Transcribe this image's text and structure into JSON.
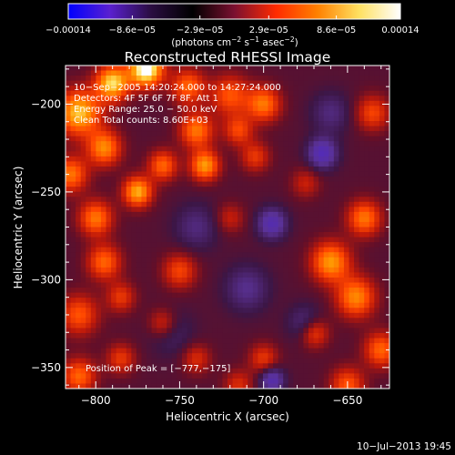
{
  "chart_data": {
    "type": "heatmap",
    "title": "Reconstructed RHESSI Image",
    "xlabel": "Heliocentric X (arcsec)",
    "ylabel": "Heliocentric Y (arcsec)",
    "xlim": [
      -818,
      -625
    ],
    "ylim": [
      -362,
      -178
    ],
    "x_ticks": [
      -800,
      -750,
      -700,
      -650
    ],
    "y_ticks": [
      -200,
      -250,
      -300,
      -350
    ],
    "x_tick_labels": [
      "−800",
      "−750",
      "−700",
      "−650"
    ],
    "y_tick_labels": [
      "−200",
      "−250",
      "−300",
      "−350"
    ],
    "colorbar": {
      "range": [
        -0.00014,
        0.00014
      ],
      "ticks": [
        -0.00014,
        -8.6e-05,
        -2.9e-05,
        2.9e-05,
        8.6e-05,
        0.00014
      ],
      "tick_labels": [
        "−0.00014",
        "−8.6e−05",
        "−2.9e−05",
        "2.9e−05",
        "8.6e−05",
        "0.00014"
      ],
      "unit_line1": "(photons cm",
      "unit_exp1": "−2",
      "unit_line2": " s",
      "unit_exp2": "−1",
      "unit_line3": " asec",
      "unit_exp3": "−2",
      "unit_close": ")",
      "colors": [
        "#0000ff",
        "#5a20d0",
        "#2a0d40",
        "#000000",
        "#7a1030",
        "#ff2a00",
        "#ff8000",
        "#ffe060",
        "#ffffff"
      ]
    },
    "annotations": [
      "10−Sep−2005 14:20:24.000 to 14:27:24.000",
      "Detectors: 4F 5F 6F 7F 8F, Att 1",
      "Energy Range: 25.0 − 50.0 keV",
      "Clean     Total counts: 8.60E+03"
    ],
    "peak_label": "Position of Peak = [−777,−175]",
    "sources": [
      {
        "x": -770,
        "y": -180,
        "v": 1.0,
        "s": 7
      },
      {
        "x": -790,
        "y": -188,
        "v": 0.8,
        "s": 7
      },
      {
        "x": -810,
        "y": -205,
        "v": 0.75,
        "s": 9
      },
      {
        "x": -795,
        "y": -225,
        "v": 0.6,
        "s": 7
      },
      {
        "x": -815,
        "y": -240,
        "v": 0.55,
        "s": 7
      },
      {
        "x": -775,
        "y": -250,
        "v": 0.7,
        "s": 6
      },
      {
        "x": -760,
        "y": -235,
        "v": 0.5,
        "s": 6
      },
      {
        "x": -740,
        "y": -215,
        "v": 0.55,
        "s": 7
      },
      {
        "x": -735,
        "y": -235,
        "v": 0.65,
        "s": 6
      },
      {
        "x": -745,
        "y": -190,
        "v": 0.5,
        "s": 7
      },
      {
        "x": -720,
        "y": -195,
        "v": 0.45,
        "s": 8
      },
      {
        "x": -700,
        "y": -200,
        "v": 0.55,
        "s": 7
      },
      {
        "x": -715,
        "y": -215,
        "v": 0.4,
        "s": 6
      },
      {
        "x": -705,
        "y": -230,
        "v": 0.35,
        "s": 6
      },
      {
        "x": -800,
        "y": -265,
        "v": 0.55,
        "s": 7
      },
      {
        "x": -795,
        "y": -290,
        "v": 0.5,
        "s": 7
      },
      {
        "x": -810,
        "y": -320,
        "v": 0.45,
        "s": 8
      },
      {
        "x": -750,
        "y": -295,
        "v": 0.4,
        "s": 7
      },
      {
        "x": -785,
        "y": -310,
        "v": 0.35,
        "s": 6
      },
      {
        "x": -760,
        "y": -325,
        "v": 0.35,
        "s": 6
      },
      {
        "x": -810,
        "y": -355,
        "v": 0.5,
        "s": 7
      },
      {
        "x": -785,
        "y": -345,
        "v": 0.35,
        "s": 6
      },
      {
        "x": -740,
        "y": -345,
        "v": 0.3,
        "s": 6
      },
      {
        "x": -660,
        "y": -290,
        "v": 0.65,
        "s": 8
      },
      {
        "x": -640,
        "y": -265,
        "v": 0.55,
        "s": 7
      },
      {
        "x": -645,
        "y": -310,
        "v": 0.6,
        "s": 8
      },
      {
        "x": -630,
        "y": -340,
        "v": 0.5,
        "s": 7
      },
      {
        "x": -670,
        "y": -330,
        "v": 0.45,
        "s": 6
      },
      {
        "x": -650,
        "y": -360,
        "v": 0.45,
        "s": 7
      },
      {
        "x": -700,
        "y": -345,
        "v": 0.35,
        "s": 6
      },
      {
        "x": -715,
        "y": -360,
        "v": 0.3,
        "s": 6
      },
      {
        "x": -635,
        "y": -205,
        "v": 0.4,
        "s": 7
      },
      {
        "x": -675,
        "y": -245,
        "v": 0.25,
        "s": 6
      },
      {
        "x": -720,
        "y": -265,
        "v": 0.25,
        "s": 6
      },
      {
        "x": -665,
        "y": -228,
        "v": -0.55,
        "s": 6
      },
      {
        "x": -695,
        "y": -268,
        "v": -0.5,
        "s": 6
      },
      {
        "x": -695,
        "y": -357,
        "v": -0.5,
        "s": 5
      },
      {
        "x": -675,
        "y": -325,
        "v": -0.3,
        "s": 7
      },
      {
        "x": -740,
        "y": -270,
        "v": -0.25,
        "s": 9
      },
      {
        "x": -660,
        "y": -205,
        "v": -0.25,
        "s": 8
      },
      {
        "x": -755,
        "y": -330,
        "v": -0.2,
        "s": 9
      },
      {
        "x": -710,
        "y": -305,
        "v": -0.3,
        "s": 9
      }
    ]
  },
  "footer": {
    "timestamp": "10−Jul−2013 19:45"
  }
}
